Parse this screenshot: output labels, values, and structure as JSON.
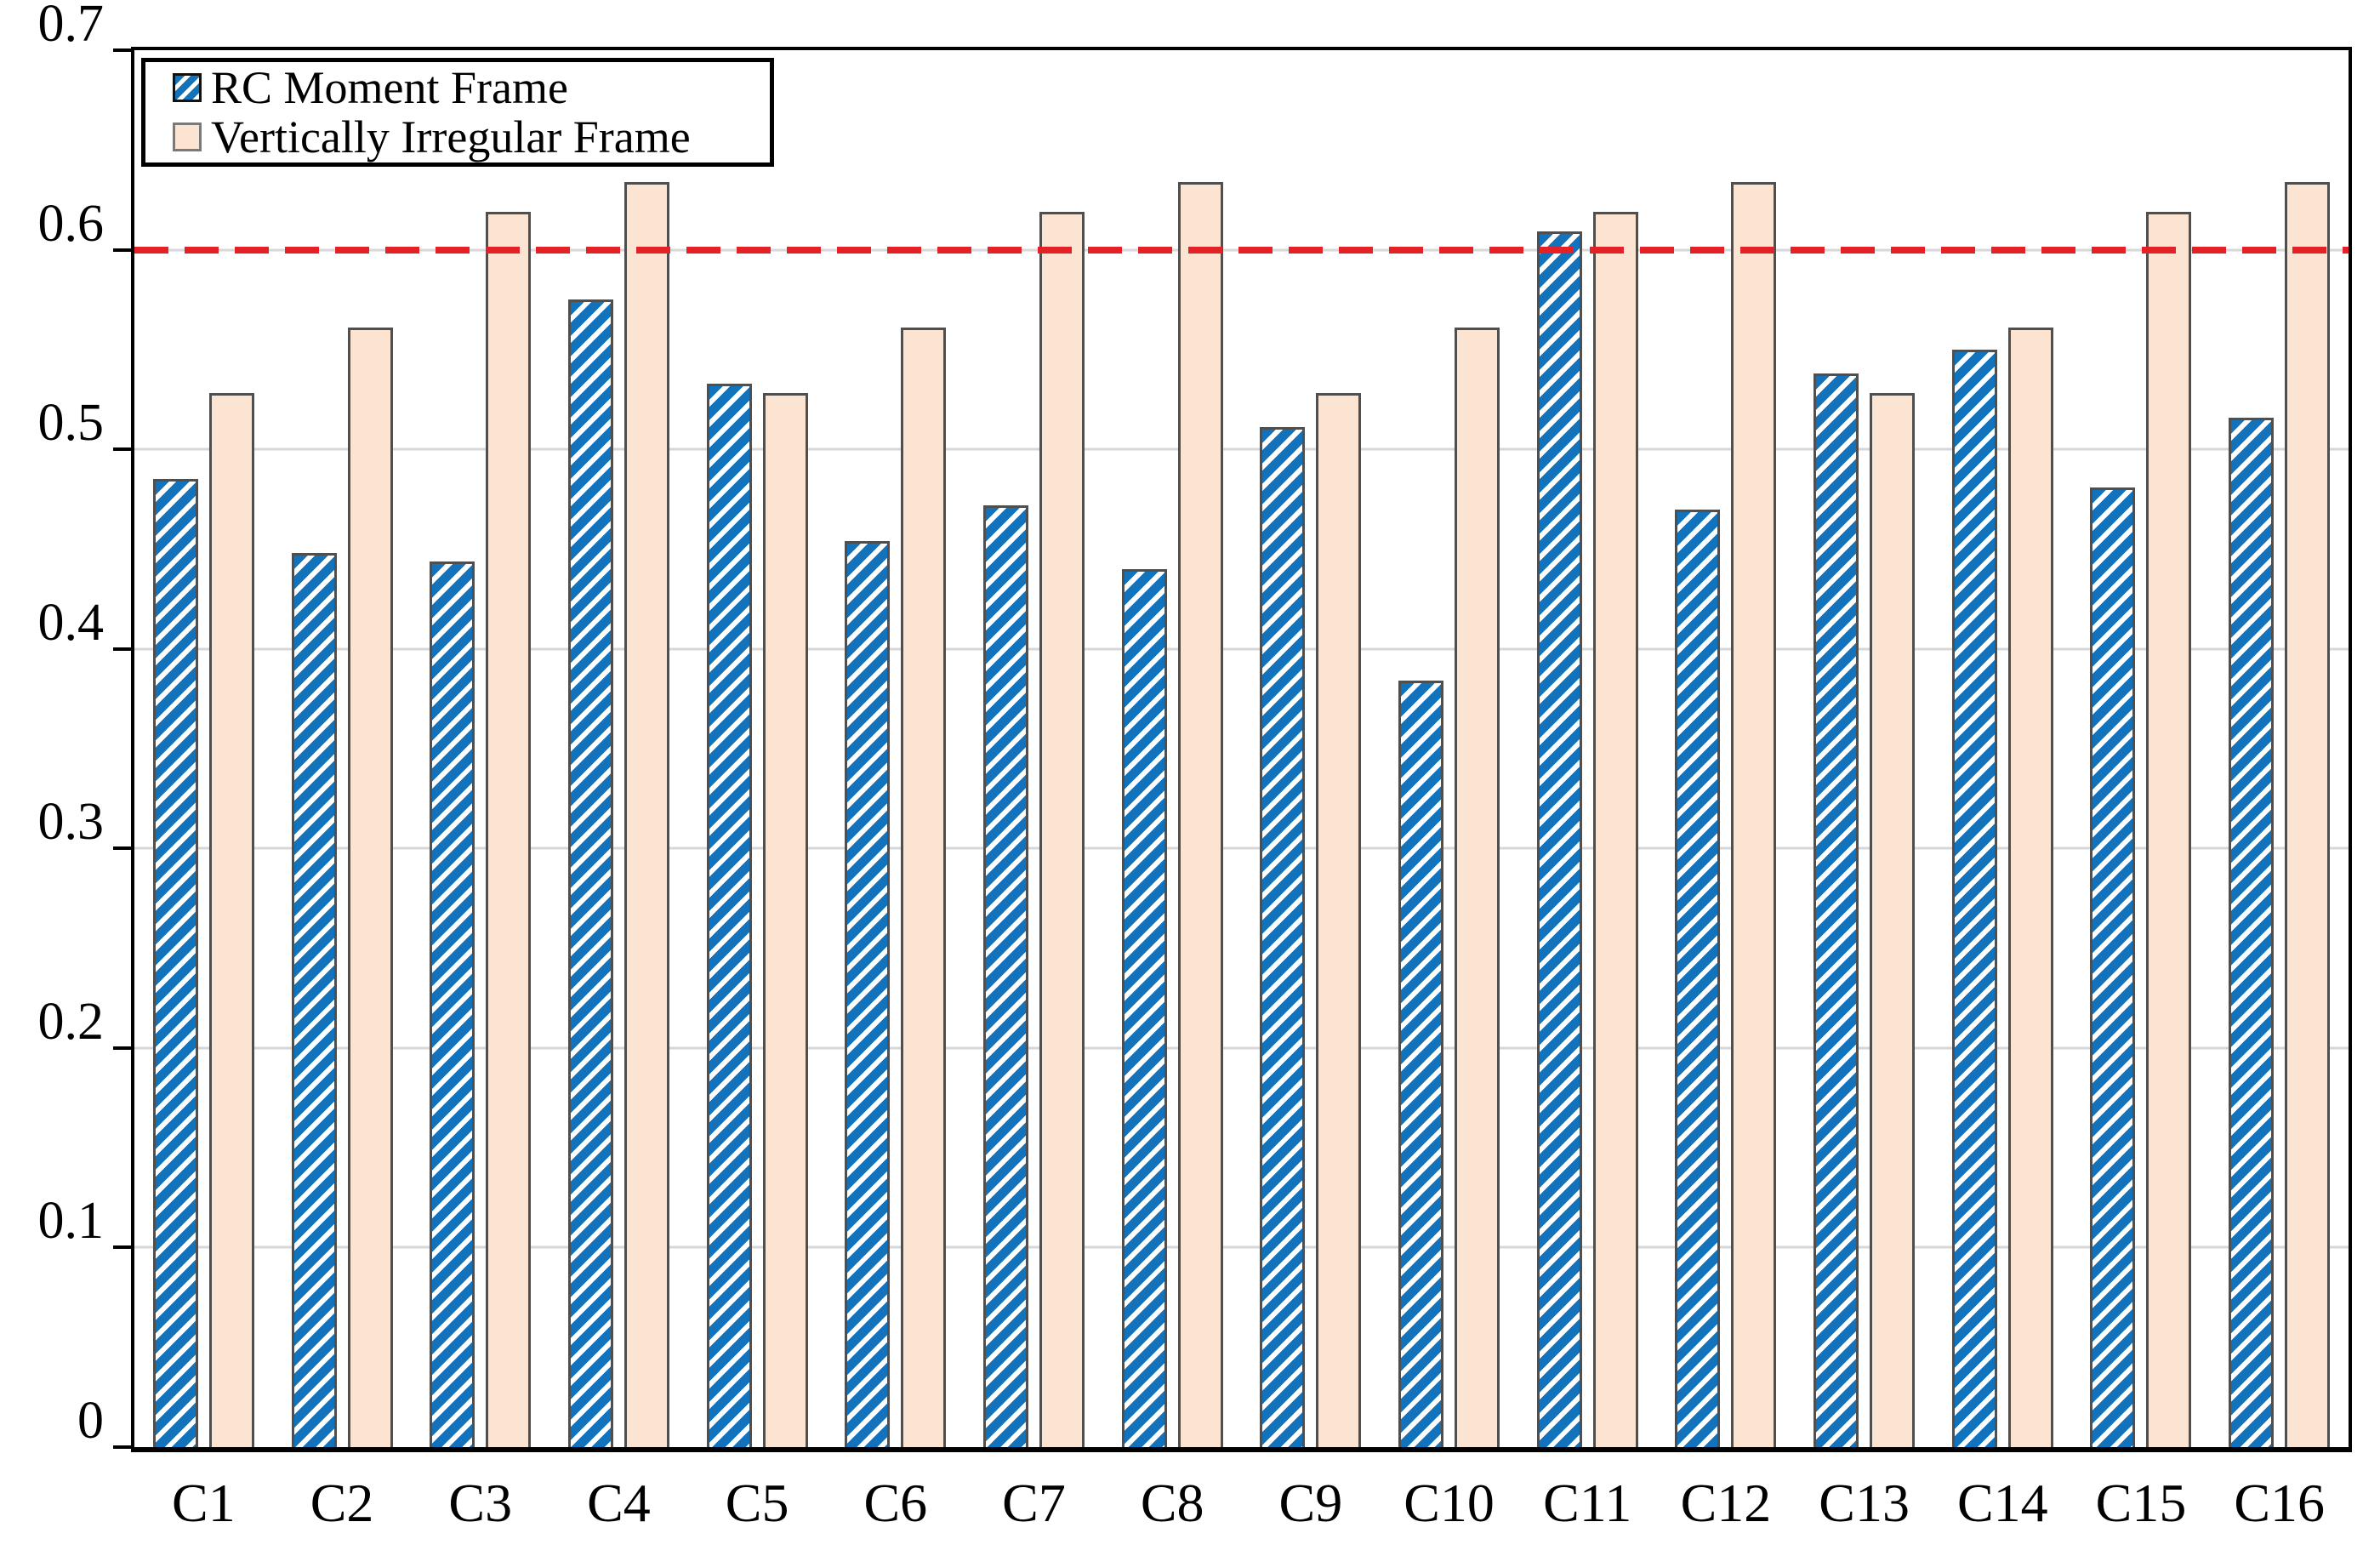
{
  "chart_data": {
    "type": "bar",
    "title": "",
    "categories": [
      "C1",
      "C2",
      "C3",
      "C4",
      "C5",
      "C6",
      "C7",
      "C8",
      "C9",
      "C10",
      "C11",
      "C12",
      "C13",
      "C14",
      "C15",
      "C16"
    ],
    "series": [
      {
        "name": "RC Moment Frame",
        "values": [
          0.485,
          0.448,
          0.444,
          0.575,
          0.533,
          0.454,
          0.472,
          0.44,
          0.511,
          0.384,
          0.609,
          0.47,
          0.538,
          0.55,
          0.481,
          0.516
        ]
      },
      {
        "name": "Vertically Irregular Frame",
        "values": [
          0.528,
          0.561,
          0.619,
          0.634,
          0.528,
          0.561,
          0.619,
          0.634,
          0.528,
          0.561,
          0.619,
          0.634,
          0.528,
          0.561,
          0.619,
          0.634
        ]
      }
    ],
    "xlabel": "",
    "ylabel": "",
    "ylim": [
      0,
      0.7
    ],
    "ytick_labels": [
      "0",
      "0.1",
      "0.2",
      "0.3",
      "0.4",
      "0.5",
      "0.6",
      "0.7"
    ],
    "ytick_values": [
      0,
      0.1,
      0.2,
      0.3,
      0.4,
      0.5,
      0.6,
      0.7
    ],
    "gridline_values": [
      0.1,
      0.2,
      0.3,
      0.4,
      0.5,
      0.6
    ],
    "grid": "horizontal",
    "legend_position": "top-left",
    "reference_line": {
      "value": 0.6,
      "style": "dashed"
    }
  },
  "colors": {
    "bar_blue": "#1272bb",
    "bar_peach": "#fce4d2",
    "bar_border": "#4f4f4f",
    "reference_red": "#e32126",
    "gridline_gray": "#d7d7d7",
    "axis_black": "#000000"
  },
  "legend": {
    "items": [
      {
        "label": "RC Moment Frame"
      },
      {
        "label": "Vertically Irregular Frame"
      }
    ]
  }
}
